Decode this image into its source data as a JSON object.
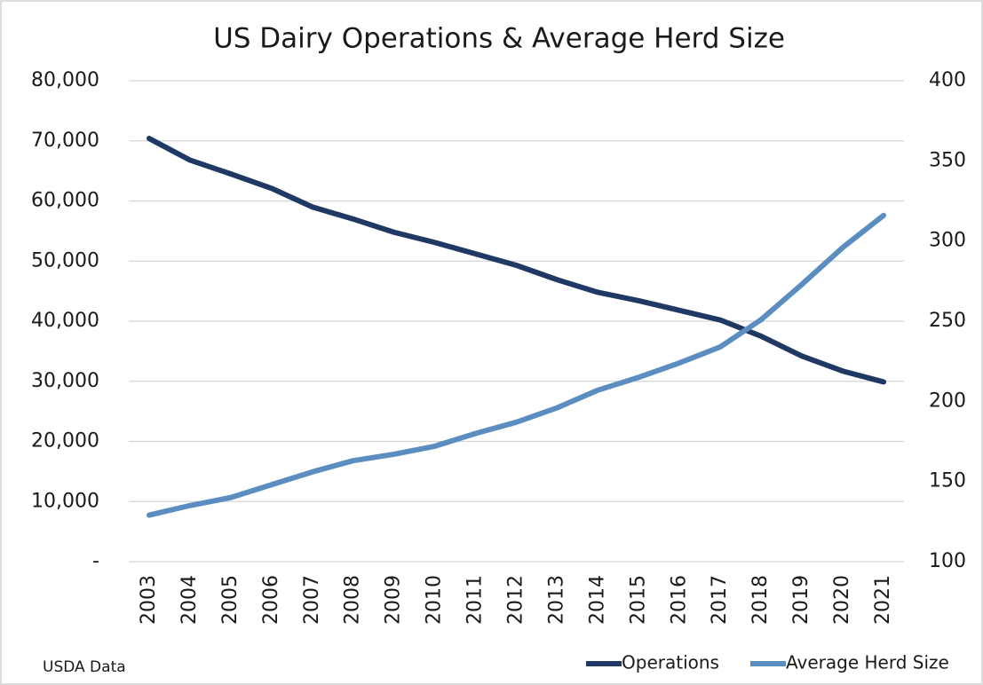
{
  "chart_data": {
    "type": "line",
    "title": "US Dairy Operations & Average Herd Size",
    "source": "USDA Data",
    "categories": [
      "2003",
      "2004",
      "2005",
      "2006",
      "2007",
      "2008",
      "2009",
      "2010",
      "2011",
      "2012",
      "2013",
      "2014",
      "2015",
      "2016",
      "2017",
      "2018",
      "2019",
      "2020",
      "2021"
    ],
    "series": [
      {
        "name": "Operations",
        "color": "#1f3864",
        "axis": "y",
        "values": [
          70400,
          66800,
          64500,
          62100,
          59000,
          57000,
          54800,
          53100,
          51200,
          49300,
          46900,
          44800,
          43400,
          41800,
          40200,
          37500,
          34200,
          31700,
          29900
        ]
      },
      {
        "name": "Average Herd Size",
        "color": "#5b8dc1",
        "axis": "y2",
        "values": [
          129,
          135,
          140,
          148,
          156,
          163,
          167,
          172,
          180,
          187,
          196,
          207,
          215,
          224,
          234,
          251,
          273,
          296,
          316
        ]
      }
    ],
    "ylim": [
      0,
      80000
    ],
    "yticks": [
      {
        "value": 0,
        "label": "-"
      },
      {
        "value": 10000,
        "label": "10,000"
      },
      {
        "value": 20000,
        "label": "20,000"
      },
      {
        "value": 30000,
        "label": "30,000"
      },
      {
        "value": 40000,
        "label": "40,000"
      },
      {
        "value": 50000,
        "label": "50,000"
      },
      {
        "value": 60000,
        "label": "60,000"
      },
      {
        "value": 70000,
        "label": "70,000"
      },
      {
        "value": 80000,
        "label": "80,000"
      }
    ],
    "y2lim": [
      100,
      400
    ],
    "y2ticks": [
      100,
      150,
      200,
      250,
      300,
      350,
      400
    ],
    "grid": true,
    "legend": "bottom-right"
  }
}
